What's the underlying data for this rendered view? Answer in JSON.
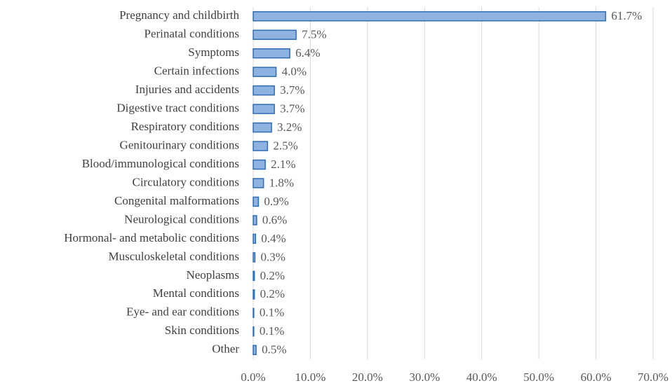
{
  "chart_data": {
    "type": "bar",
    "orientation": "horizontal",
    "categories": [
      "Pregnancy and childbirth",
      "Perinatal conditions",
      "Symptoms",
      "Certain infections",
      "Injuries and accidents",
      "Digestive tract conditions",
      "Respiratory conditions",
      "Genitourinary conditions",
      "Blood/immunological conditions",
      "Circulatory conditions",
      "Congenital malformations",
      "Neurological conditions",
      "Hormonal- and metabolic conditions",
      "Musculoskeletal conditions",
      "Neoplasms",
      "Mental conditions",
      "Eye- and ear conditions",
      "Skin conditions",
      "Other"
    ],
    "values": [
      61.7,
      7.5,
      6.4,
      4.0,
      3.7,
      3.7,
      3.2,
      2.5,
      2.1,
      1.8,
      0.9,
      0.6,
      0.4,
      0.3,
      0.2,
      0.2,
      0.1,
      0.1,
      0.5
    ],
    "value_labels": [
      "61.7%",
      "7.5%",
      "6.4%",
      "4.0%",
      "3.7%",
      "3.7%",
      "3.2%",
      "2.5%",
      "2.1%",
      "1.8%",
      "0.9%",
      "0.6%",
      "0.4%",
      "0.3%",
      "0.2%",
      "0.2%",
      "0.1%",
      "0.1%",
      "0.5%"
    ],
    "color": "#8fb3e0",
    "edge_color": "#2e6db4",
    "xlim": [
      0,
      70
    ],
    "xticks": [
      {
        "value": 0,
        "label": "0.0%"
      },
      {
        "value": 10,
        "label": "10.0%"
      },
      {
        "value": 20,
        "label": "20.0%"
      },
      {
        "value": 30,
        "label": "30.0%"
      },
      {
        "value": 40,
        "label": "40.0%"
      },
      {
        "value": 50,
        "label": "50.0%"
      },
      {
        "value": 60,
        "label": "60.0%"
      },
      {
        "value": 70,
        "label": "70.0%"
      }
    ],
    "grid": true
  }
}
